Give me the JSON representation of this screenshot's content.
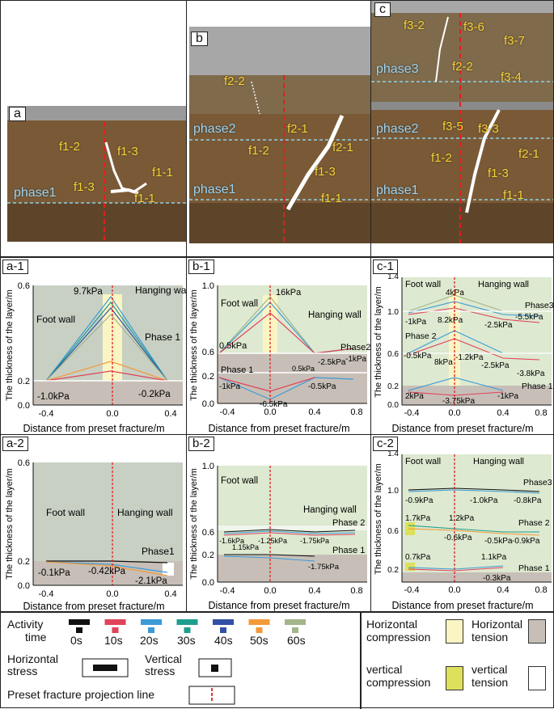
{
  "photos": {
    "a": {
      "tag": "a",
      "labels": {
        "f1_2": "f1-2",
        "f1_3": "f1-3",
        "f1_1a": "f1-1",
        "f1_3b": "f1-3",
        "f1_1b": "f1-1"
      },
      "phase": "phase1"
    },
    "b": {
      "tag": "b",
      "labels": {
        "f2_2": "f2-2",
        "f2_1a": "f2-1",
        "f1_2": "f1-2",
        "f2_1b": "f2-1",
        "f1_3": "f1-3",
        "f1_1": "f1-1"
      },
      "phase2": "phase2",
      "phase1": "phase1"
    },
    "c": {
      "tag": "c",
      "labels": {
        "f3_2": "f3-2",
        "f3_6": "f3-6",
        "f3_7": "f3-7",
        "f2_2": "f2-2",
        "f3_4": "f3-4",
        "f3_5": "f3-5",
        "f3_3": "f3-3",
        "f1_2": "f1-2",
        "f2_1": "f2-1",
        "f1_3": "f1-3",
        "f1_1": "f1-1"
      },
      "phase3": "phase3",
      "phase2": "phase2",
      "phase1": "phase1"
    }
  },
  "axes": {
    "ylabel": "The thickness of the layer/m",
    "xlabel": "Distance from preset fracture/m"
  },
  "charts": {
    "a1": {
      "tag": "a-1",
      "xticks": [
        "-0.4",
        "0.0",
        "0.4"
      ],
      "yticks": [
        "0.0",
        "0.2",
        "0.6"
      ],
      "notes": {
        "foot": "Foot wall",
        "hang": "Hanging wall",
        "phase": "Phase 1",
        "top": "9.7kPa",
        "left": "-1.0kPa",
        "right": "-0.2kPa"
      }
    },
    "b1": {
      "tag": "b-1",
      "xticks": [
        "-0.4",
        "0.0",
        "0.4",
        "0.8"
      ],
      "yticks": [
        "0.0",
        "0.2",
        "0.6",
        "1.0"
      ],
      "notes": {
        "foot": "Foot wall",
        "hang": "Hanging wall",
        "phase2": "Phase2",
        "phase1": "Phase 1",
        "top": "16kPa",
        "l2": "0.5kPa",
        "r2a": "0.5kPa",
        "r2b": "-2.5kPa",
        "r2c": "-1kPa",
        "l1": "-1kPa",
        "m1": "-6.5kPa",
        "r1": "-0.5kPa"
      }
    },
    "c1": {
      "tag": "c-1",
      "xticks": [
        "-0.4",
        "0.0",
        "0.4",
        "0.8"
      ],
      "yticks": [
        "0.0",
        "0.2",
        "0.6",
        "1.0",
        "1.4"
      ],
      "notes": {
        "foot": "Foot wall",
        "hang": "Hanging wall",
        "phase3": "Phase3",
        "phase2": "Phase 2",
        "phase1": "Phase 1",
        "t3": "4kPa",
        "l3": "-1kPa",
        "m3": "8.2kPa",
        "r3a": "-2.5kPa",
        "r3b": "-5.5kPa",
        "l2": "-0.5kPa",
        "m2": "-1.2kPa",
        "t2": "8kPa",
        "r2a": "-2.5kPa",
        "r2b": "-3.8kPa",
        "l1": "2kPa",
        "m1": "-3.75kPa",
        "r1": "-1kPa"
      }
    },
    "a2": {
      "tag": "a-2",
      "xticks": [
        "-0.4",
        "0.0",
        "0.4"
      ],
      "yticks": [
        "0.0",
        "0.2",
        "0.6"
      ],
      "notes": {
        "foot": "Foot wall",
        "hang": "Hanging wall",
        "phase": "Phase1",
        "left": "-0.1kPa",
        "mid": "-0.42kPa",
        "right": "-2.1kPa"
      }
    },
    "b2": {
      "tag": "b-2",
      "xticks": [
        "-0.4",
        "0.0",
        "0.4",
        "0.8"
      ],
      "yticks": [
        "0.0",
        "0.2",
        "0.6",
        "1.0"
      ],
      "notes": {
        "foot": "Foot wall",
        "hang": "Hanging wall",
        "phase2": "Phase 2",
        "phase1": "Phase 1",
        "l2": "-1.6kPa",
        "m2": "-1.25kPa",
        "r2": "-1.75kPa",
        "l1": "1.15kPa",
        "r1": "-1.75kPa"
      }
    },
    "c2": {
      "tag": "c-2",
      "xticks": [
        "-0.4",
        "0.0",
        "0.4",
        "0.8"
      ],
      "yticks": [
        "0.2",
        "0.6",
        "1.0",
        "1.4"
      ],
      "notes": {
        "foot": "Foot wall",
        "hang": "Hanging wall",
        "phase3": "Phase3",
        "phase2": "Phase 2",
        "phase1": "Phase 1",
        "l3": "-0.9kPa",
        "m3": "-1.0kPa",
        "r3": "-0.8kPa",
        "l2": "1.7kPa",
        "m2a": "1.2kPa",
        "m2b": "-0.6kPa",
        "r2a": "-0.5kPa",
        "r2b": "-0.9kPa",
        "l1": "0.7kPa",
        "r1a": "1.1kPa",
        "r1b": "-0.3kPa"
      }
    }
  },
  "legend": {
    "activity": "Activity",
    "time": "time",
    "times": [
      "0s",
      "10s",
      "20s",
      "30s",
      "40s",
      "50s",
      "60s"
    ],
    "time_colors": [
      "#111111",
      "#e0435a",
      "#3b9bd6",
      "#1f9e8e",
      "#3251a6",
      "#f29a3a",
      "#a3b58a"
    ],
    "horizontal_stress": "Horizontal stress",
    "vertical_stress": "Vertical stress",
    "fracture_line": "Preset fracture projection line",
    "h_compression": "Horizontal compression",
    "h_tension": "Horizontal tension",
    "v_compression": "vertical compression",
    "v_tension": "vertical tension",
    "colors": {
      "h_compression": "#fbf5c4",
      "h_tension": "#c7bfb7",
      "v_compression": "#dde05a",
      "v_tension": "#ffffff"
    }
  }
}
